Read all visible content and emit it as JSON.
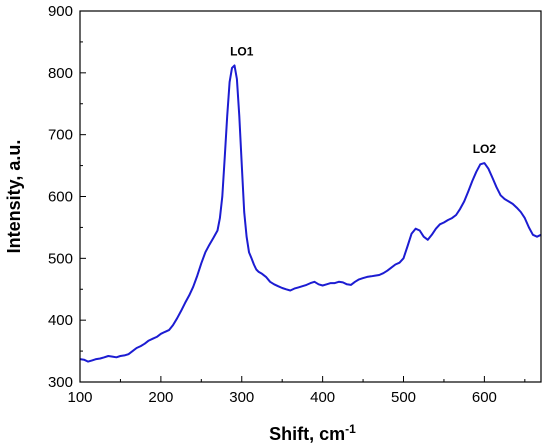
{
  "chart_data": {
    "type": "line",
    "title": "",
    "xlabel": "Shift, cm",
    "xlabel_superscript": "-1",
    "ylabel": "Intensity, a.u.",
    "xlim": [
      100,
      670
    ],
    "ylim": [
      300,
      900
    ],
    "xticks": [
      "100",
      "200",
      "300",
      "400",
      "500",
      "600"
    ],
    "yticks": [
      "300",
      "400",
      "500",
      "600",
      "700",
      "800",
      "900"
    ],
    "grid": false,
    "line_color": "#1c1cd2",
    "series": [
      {
        "x": [
          100,
          105,
          110,
          115,
          120,
          125,
          130,
          135,
          140,
          145,
          150,
          155,
          160,
          165,
          170,
          175,
          180,
          185,
          190,
          195,
          200,
          205,
          210,
          215,
          220,
          225,
          230,
          235,
          240,
          245,
          250,
          255,
          260,
          265,
          270,
          273,
          276,
          279,
          282,
          285,
          288,
          291,
          294,
          297,
          300,
          303,
          306,
          309,
          312,
          315,
          318,
          321,
          325,
          330,
          335,
          340,
          345,
          350,
          355,
          360,
          365,
          370,
          375,
          380,
          385,
          390,
          395,
          400,
          405,
          410,
          415,
          420,
          425,
          430,
          435,
          440,
          445,
          450,
          455,
          460,
          465,
          470,
          475,
          480,
          485,
          490,
          495,
          500,
          505,
          510,
          515,
          520,
          525,
          530,
          535,
          540,
          545,
          550,
          555,
          560,
          565,
          570,
          575,
          580,
          585,
          590,
          595,
          600,
          605,
          610,
          615,
          620,
          625,
          630,
          635,
          640,
          645,
          650,
          655,
          660,
          665,
          670
        ],
        "y": [
          337,
          336,
          333,
          335,
          337,
          338,
          340,
          342,
          341,
          340,
          342,
          343,
          345,
          350,
          355,
          358,
          362,
          367,
          370,
          373,
          378,
          381,
          384,
          392,
          403,
          415,
          428,
          440,
          454,
          472,
          492,
          510,
          522,
          533,
          545,
          565,
          600,
          665,
          730,
          785,
          808,
          812,
          790,
          730,
          650,
          575,
          535,
          510,
          500,
          490,
          482,
          478,
          475,
          470,
          462,
          458,
          455,
          452,
          450,
          448,
          451,
          453,
          455,
          457,
          460,
          462,
          458,
          456,
          458,
          460,
          460,
          462,
          461,
          458,
          457,
          462,
          466,
          468,
          470,
          471,
          472,
          473,
          476,
          480,
          485,
          490,
          493,
          500,
          520,
          540,
          548,
          545,
          535,
          530,
          538,
          548,
          555,
          558,
          562,
          565,
          570,
          580,
          592,
          608,
          625,
          640,
          652,
          654,
          645,
          630,
          615,
          602,
          596,
          592,
          588,
          582,
          575,
          565,
          550,
          538,
          535,
          538
        ]
      }
    ],
    "annotations": [
      {
        "text": "LO1",
        "x": 300,
        "y": 812
      },
      {
        "text": "LO2",
        "x": 600,
        "y": 654
      }
    ]
  }
}
